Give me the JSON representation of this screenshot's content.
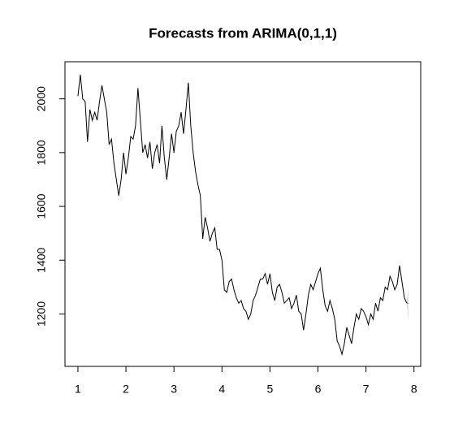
{
  "chart_data": {
    "type": "line",
    "title": "Forecasts from ARIMA(0,1,1)",
    "color": "#000000",
    "x": [
      1.0,
      1.05,
      1.1,
      1.15,
      1.2,
      1.25,
      1.3,
      1.35,
      1.4,
      1.45,
      1.5,
      1.55,
      1.6,
      1.65,
      1.7,
      1.75,
      1.8,
      1.85,
      1.9,
      1.95,
      2.0,
      2.05,
      2.1,
      2.15,
      2.2,
      2.25,
      2.3,
      2.35,
      2.4,
      2.45,
      2.5,
      2.55,
      2.6,
      2.65,
      2.7,
      2.75,
      2.8,
      2.85,
      2.9,
      2.95,
      3.0,
      3.05,
      3.1,
      3.15,
      3.2,
      3.25,
      3.3,
      3.35,
      3.4,
      3.45,
      3.5,
      3.55,
      3.6,
      3.65,
      3.7,
      3.75,
      3.8,
      3.85,
      3.9,
      3.95,
      4.0,
      4.05,
      4.1,
      4.15,
      4.2,
      4.25,
      4.3,
      4.35,
      4.4,
      4.45,
      4.5,
      4.55,
      4.6,
      4.65,
      4.7,
      4.75,
      4.8,
      4.85,
      4.9,
      4.95,
      5.0,
      5.05,
      5.1,
      5.15,
      5.2,
      5.25,
      5.3,
      5.35,
      5.4,
      5.45,
      5.5,
      5.55,
      5.6,
      5.65,
      5.7,
      5.75,
      5.8,
      5.85,
      5.9,
      5.95,
      6.0,
      6.05,
      6.1,
      6.15,
      6.2,
      6.25,
      6.3,
      6.35,
      6.4,
      6.45,
      6.5,
      6.55,
      6.6,
      6.65,
      6.7,
      6.75,
      6.8,
      6.85,
      6.9,
      6.95,
      7.0,
      7.05,
      7.1,
      7.15,
      7.2,
      7.25,
      7.3,
      7.35,
      7.4,
      7.45,
      7.5,
      7.55,
      7.6,
      7.65,
      7.7,
      7.75,
      7.8,
      7.85
    ],
    "values": [
      2010,
      2090,
      2000,
      1990,
      1840,
      1960,
      1920,
      1950,
      1920,
      1990,
      2050,
      2000,
      1950,
      1830,
      1850,
      1760,
      1700,
      1640,
      1700,
      1800,
      1720,
      1780,
      1860,
      1850,
      1900,
      2040,
      1920,
      1800,
      1830,
      1780,
      1840,
      1740,
      1800,
      1830,
      1760,
      1900,
      1780,
      1700,
      1780,
      1870,
      1800,
      1880,
      1900,
      1950,
      1870,
      1960,
      2060,
      1900,
      1800,
      1730,
      1680,
      1640,
      1480,
      1560,
      1520,
      1470,
      1500,
      1520,
      1440,
      1440,
      1400,
      1290,
      1280,
      1320,
      1330,
      1290,
      1260,
      1240,
      1250,
      1220,
      1210,
      1180,
      1200,
      1250,
      1270,
      1300,
      1330,
      1330,
      1350,
      1310,
      1350,
      1280,
      1250,
      1300,
      1310,
      1280,
      1240,
      1250,
      1260,
      1220,
      1240,
      1270,
      1210,
      1200,
      1140,
      1200,
      1270,
      1310,
      1290,
      1320,
      1350,
      1370,
      1290,
      1230,
      1210,
      1250,
      1220,
      1180,
      1100,
      1080,
      1050,
      1090,
      1150,
      1120,
      1090,
      1150,
      1200,
      1180,
      1220,
      1210,
      1190,
      1160,
      1200,
      1180,
      1240,
      1210,
      1260,
      1250,
      1300,
      1290,
      1340,
      1320,
      1290,
      1310,
      1380,
      1320,
      1260,
      1240
    ],
    "forecast": {
      "color": "#5b8fd6",
      "band_color": "#c9d6e8",
      "x": [
        7.85,
        7.88
      ],
      "values": [
        1240,
        1240
      ],
      "lower": [
        1240,
        1170
      ],
      "upper": [
        1240,
        1300
      ]
    },
    "xlim": [
      0.73,
      8.14
    ],
    "xticks": [
      1,
      2,
      3,
      4,
      5,
      6,
      7,
      8
    ],
    "ylim": [
      1005,
      2138
    ],
    "yticks": [
      1200,
      1400,
      1600,
      1800,
      2000
    ]
  }
}
